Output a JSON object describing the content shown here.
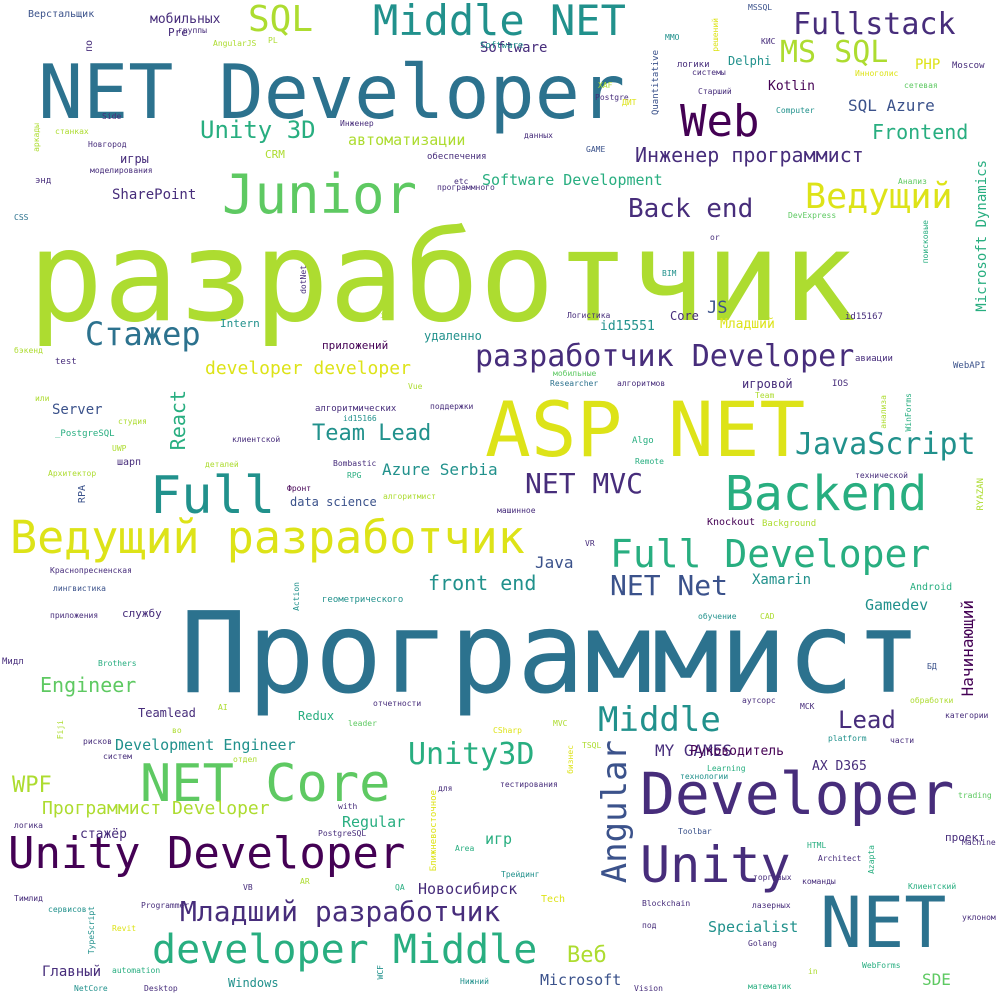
{
  "palette": {
    "c0": "#440154",
    "c1": "#472d7b",
    "c2": "#3b528b",
    "c3": "#2c728e",
    "c4": "#21918c",
    "c5": "#28ae80",
    "c6": "#5ec962",
    "c7": "#addc30",
    "c8": "#dde318"
  },
  "words": [
    "разработчик",
    "Программист",
    "NET Developer",
    "ASP NET",
    "Developer",
    "NET",
    "Ведущий разработчик",
    "Junior",
    "Unity Developer",
    "Middle NET",
    "NET Core",
    "Full",
    "Backend",
    "Web",
    "Unity",
    "Full Developer",
    "developer Middle",
    "разработчик Developer",
    "Ведущий",
    "Fullstack",
    "SQL",
    "Стажер",
    "Middle",
    "MS SQL",
    "JavaScript",
    "Angular",
    "Младший разработчик",
    "Unity3D",
    "Back end",
    "Unity 3D",
    "Инженер программист",
    "Team Lead",
    "NET MVC",
    "NET Net",
    "Lead",
    "Программист Developer",
    "developer developer",
    "front end",
    "Frontend",
    "React",
    "Engineer",
    "WPF",
    "Веб",
    "SQL Azure",
    "Azure Serbia",
    "Software Development",
    "Development Engineer",
    "MY GAMES",
    "Gamedev",
    "Начинающий",
    "Microsoft Dynamics",
    "Xamarin",
    "Specialist",
    "Новосибирск",
    "Microsoft",
    "SDE",
    "Java",
    "автоматизации",
    "SharePoint",
    "Regular",
    "Software",
    "мобильных",
    "Server",
    "Kotlin",
    "Главный",
    "Руководитель",
    "PHP",
    "Младший",
    "id15551",
    "стажёр",
    "AX D365",
    "JS",
    "игр",
    "Teamlead",
    "Redux",
    "data science",
    "игры",
    "Windows",
    "Delphi",
    "Core",
    "удаленно",
    "приложений",
    "игровой",
    "Intern",
    "CRM",
    "Pre",
    "Верстальщик",
    "test",
    "проект",
    "шарп",
    "службу",
    "Android",
    "Knockout",
    "Background",
    "Moscow",
    "Computer",
    "Старший",
    "системы",
    "логики",
    "Postgre",
    "Quantitative",
    "Software",
    "id15167",
    "авиации",
    "WebAPI",
    "IOS",
    "алгоритмов",
    "Researcher",
    "мобильные",
    "Vue",
    "поддержки",
    "алгоритмических",
    "id15166",
    "клиентской",
    "Bombastic",
    "RPG",
    "Фронт",
    "алгоритмист",
    "машинное",
    "Remote",
    "Algo",
    "Team",
    "технической",
    "RYAZAN",
    "анализа",
    "WinForms",
    "Архитектор",
    "студия",
    "UWP",
    "деталей",
    "_PostgreSQL",
    "или",
    "бэкенд",
    "CSS",
    "энд",
    "моделирования",
    "Новгород",
    "станках",
    "аркады",
    "Side",
    "Инженер",
    "данных",
    "обеспечения",
    "GAME",
    "etc",
    "программного",
    "XAF",
    "ДИТ",
    "MMO",
    "решений",
    "КИС",
    "MSSQL",
    "Инноголис",
    "сетевая",
    "Анализ",
    "DevExpress",
    "or",
    "поисковые",
    "BIM",
    "dotNet",
    "id",
    "группы",
    "по",
    "AngularJS",
    "PL",
    "Логистика",
    "RPA",
    "Action",
    "VR",
    "обучение",
    "CAD",
    "геометрического",
    "Краснопресненская",
    "лингвистика",
    "приложения",
    "Мидл",
    "Brothers",
    "AI",
    "leader",
    "отчетности",
    "Fiji",
    "во",
    "рисков",
    "систем",
    "отдел",
    "with",
    "PostgreSQL",
    "для",
    "тестирования",
    "CSharp",
    "бизнес",
    "Learning",
    "технологии",
    "MVC",
    "TSQL",
    "аутсорс",
    "МСК",
    "platform",
    "части",
    "категории",
    "обработки",
    "БД",
    "Ближневосточное",
    "Area",
    "HTML",
    "Architect",
    "команды",
    "Azapta",
    "Клиентский",
    "trading",
    "Machine",
    "уклоном",
    "торговых",
    "лазерных",
    "Golang",
    "под",
    "Blockchain",
    "математик",
    "in",
    "WebForms",
    "Toolbar",
    "Трейдинг",
    "AR",
    "QA",
    "Tech",
    "TypeScript",
    "VB",
    "Programmer",
    "Revit",
    "automation",
    "NetCore",
    "Desktop",
    "Vision",
    "WCF",
    "Нижний",
    "логика",
    "Тимлид",
    "сервисов"
  ]
}
